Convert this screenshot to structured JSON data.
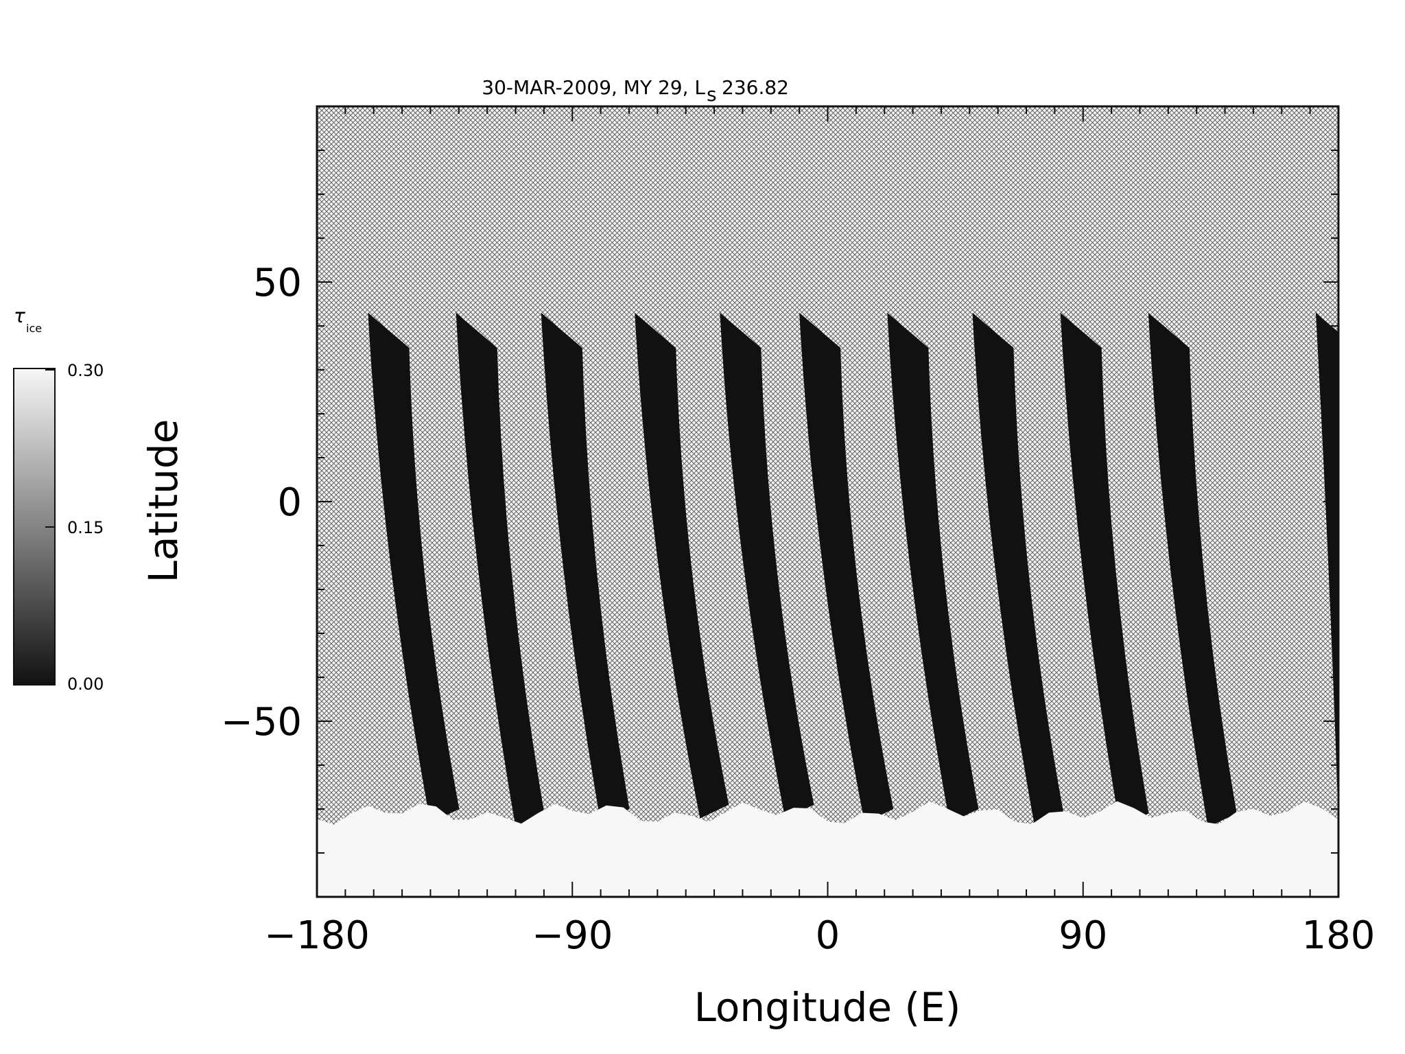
{
  "chart_data": {
    "type": "heatmap",
    "title": "30-MAR-2009, MY 29,  L",
    "title_subscript": "s",
    "title_value": "236.82",
    "xlabel": "Longitude (E)",
    "ylabel": "Latitude",
    "xlim": [
      -180,
      180
    ],
    "ylim": [
      -90,
      90
    ],
    "xticks": [
      {
        "value": -180,
        "label": "−180"
      },
      {
        "value": -90,
        "label": "−90"
      },
      {
        "value": 0,
        "label": "0"
      },
      {
        "value": 90,
        "label": "90"
      },
      {
        "value": 180,
        "label": "180"
      }
    ],
    "yticks": [
      {
        "value": 50,
        "label": "50"
      },
      {
        "value": 0,
        "label": "0"
      },
      {
        "value": -50,
        "label": "−50"
      }
    ],
    "colorbar": {
      "label": "τ",
      "label_subscript": "ice",
      "range": [
        0.0,
        0.3
      ],
      "ticks": [
        "0.30",
        "0.15",
        "0.00"
      ],
      "colors": [
        "#111111",
        "#f7f7f7"
      ]
    },
    "no_data_pattern": "crosshatch",
    "swaths": [
      {
        "lon_top": -162,
        "lon_bottom": -140,
        "lat_top": 43,
        "lat_bottom": -70
      },
      {
        "lon_top": -131,
        "lon_bottom": -110,
        "lat_top": 43,
        "lat_bottom": -71
      },
      {
        "lon_top": -101,
        "lon_bottom": -80,
        "lat_top": 43,
        "lat_bottom": -70
      },
      {
        "lon_top": -68,
        "lon_bottom": -45,
        "lat_top": 43,
        "lat_bottom": -69
      },
      {
        "lon_top": -38,
        "lon_bottom": -15,
        "lat_top": 43,
        "lat_bottom": -69
      },
      {
        "lon_top": -10,
        "lon_bottom": 13,
        "lat_top": 43,
        "lat_bottom": -70
      },
      {
        "lon_top": 21,
        "lon_bottom": 43,
        "lat_top": 43,
        "lat_bottom": -70
      },
      {
        "lon_top": 51,
        "lon_bottom": 73,
        "lat_top": 43,
        "lat_bottom": -71
      },
      {
        "lon_top": 82,
        "lon_bottom": 103,
        "lat_top": 43,
        "lat_bottom": -71
      },
      {
        "lon_top": 113,
        "lon_bottom": 134,
        "lat_top": 43,
        "lat_bottom": -71
      },
      {
        "lon_top": 172,
        "lon_bottom": 180,
        "lat_top": 43,
        "lat_bottom": -70
      }
    ],
    "south_polar_cap": {
      "lat_top": -71,
      "lat_bottom": -90,
      "value": 0.3
    }
  }
}
